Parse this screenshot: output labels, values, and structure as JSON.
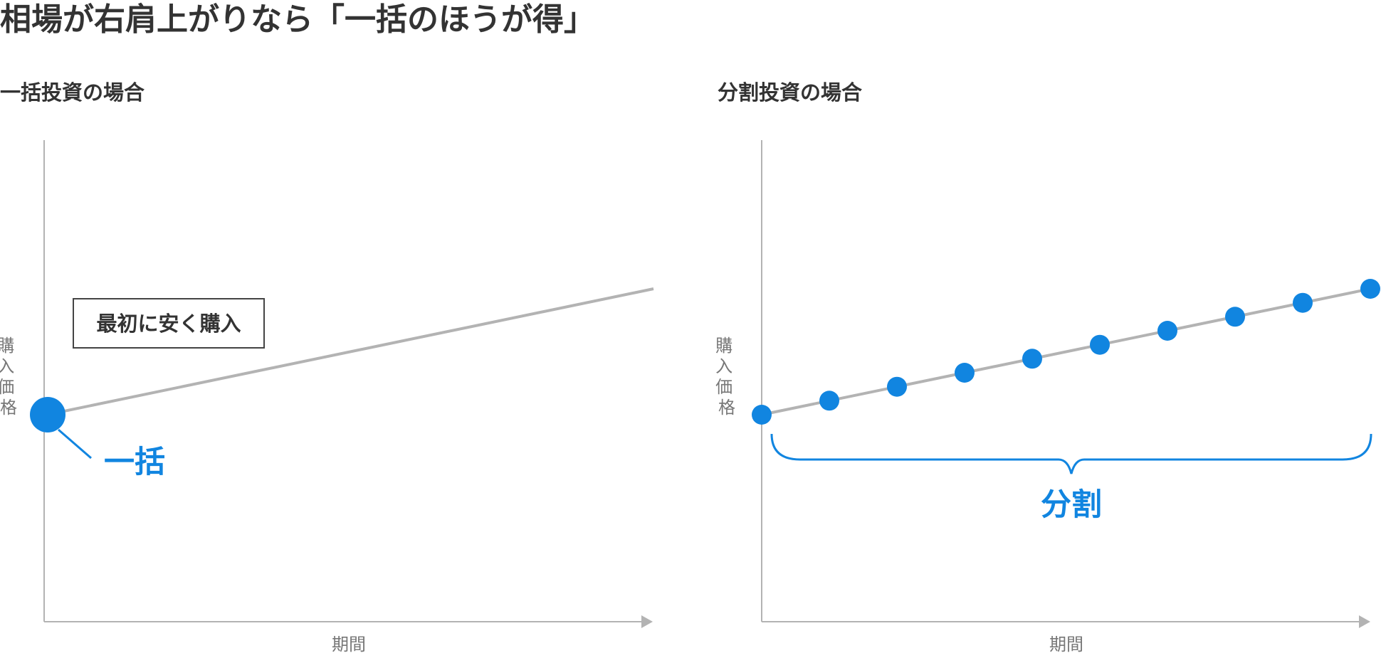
{
  "title": "相場が右肩上がりなら「一括のほうが得」",
  "colors": {
    "accent": "#1185e0",
    "line": "#b3b3b3",
    "text": "#333333",
    "axis_text": "#777777"
  },
  "left_panel": {
    "title": "一括投資の場合",
    "ylabel": "購入価格",
    "xlabel": "期間",
    "callout": "最初に安く購入",
    "point_label": "一括"
  },
  "right_panel": {
    "title": "分割投資の場合",
    "ylabel": "購入価格",
    "xlabel": "期間",
    "brace_label": "分割",
    "purchase_count": 10
  }
}
